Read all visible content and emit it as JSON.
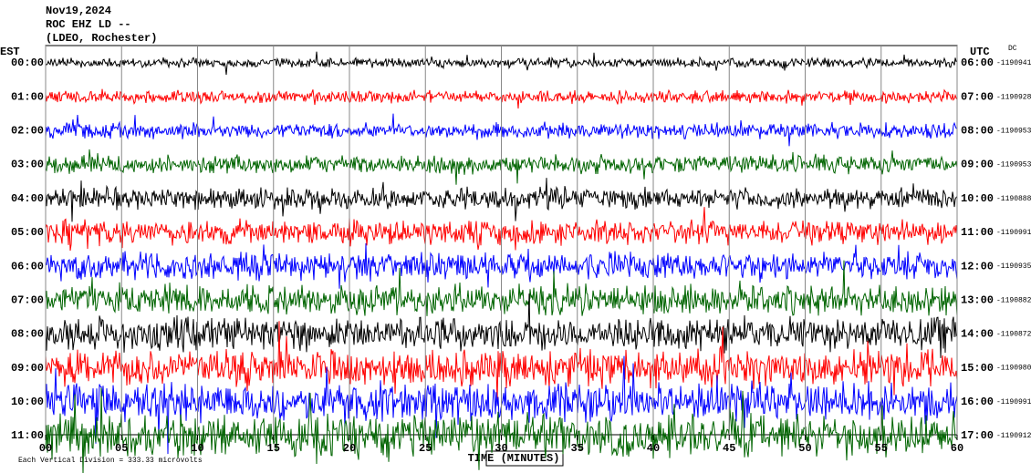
{
  "header": {
    "date": "Nov19,2024",
    "station": "ROC EHZ LD --",
    "network": "(LDEO, Rochester)"
  },
  "chart_data": {
    "type": "helicorder",
    "left_axis_title": "EST",
    "right_axis_title": "UTC",
    "dc_label": "DC",
    "x_label": "TIME (MINUTES)",
    "footer": "Each Vertical Division =  333.33 microvolts",
    "xlim": [
      0,
      60
    ],
    "xticks": [
      {
        "value": 0,
        "label": "00"
      },
      {
        "value": 5,
        "label": "05"
      },
      10,
      15,
      20,
      25,
      30,
      35,
      40,
      45,
      50,
      55,
      60
    ],
    "rows": [
      {
        "est": "00:00",
        "utc": "06:00",
        "dc": "-1190941",
        "color": "#000000"
      },
      {
        "est": "01:00",
        "utc": "07:00",
        "dc": "-1190928",
        "color": "#ff0000"
      },
      {
        "est": "02:00",
        "utc": "08:00",
        "dc": "-1190953",
        "color": "#0000ff"
      },
      {
        "est": "03:00",
        "utc": "09:00",
        "dc": "-1190953",
        "color": "#006400"
      },
      {
        "est": "04:00",
        "utc": "10:00",
        "dc": "-1190888",
        "color": "#000000"
      },
      {
        "est": "05:00",
        "utc": "11:00",
        "dc": "-1190991",
        "color": "#ff0000"
      },
      {
        "est": "06:00",
        "utc": "12:00",
        "dc": "-1190935",
        "color": "#0000ff"
      },
      {
        "est": "07:00",
        "utc": "13:00",
        "dc": "-1190882",
        "color": "#006400"
      },
      {
        "est": "08:00",
        "utc": "14:00",
        "dc": "-1190872",
        "color": "#000000"
      },
      {
        "est": "09:00",
        "utc": "15:00",
        "dc": "-1190980",
        "color": "#ff0000"
      },
      {
        "est": "10:00",
        "utc": "16:00",
        "dc": "-1190991",
        "color": "#0000ff"
      },
      {
        "est": "11:00",
        "utc": "17:00",
        "dc": "-1190912",
        "color": "#006400"
      }
    ]
  }
}
